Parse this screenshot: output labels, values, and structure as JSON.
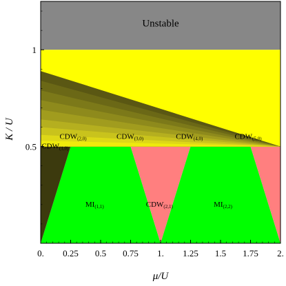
{
  "chart_data": {
    "type": "region-diagram",
    "xlabel": "μ/U",
    "ylabel": "K / U",
    "xlim": [
      0,
      2
    ],
    "ylim": [
      0,
      1.25
    ],
    "x_ticks": [
      {
        "value": 0,
        "label": "0."
      },
      {
        "value": 0.25,
        "label": "0.25"
      },
      {
        "value": 0.5,
        "label": "0.5"
      },
      {
        "value": 0.75,
        "label": "0.75"
      },
      {
        "value": 1,
        "label": "1."
      },
      {
        "value": 1.25,
        "label": "1.25"
      },
      {
        "value": 1.5,
        "label": "1.5"
      },
      {
        "value": 1.75,
        "label": "1.75"
      },
      {
        "value": 2,
        "label": "2."
      }
    ],
    "y_ticks": [
      {
        "value": 0.5,
        "label": "0.5"
      },
      {
        "value": 1,
        "label": "1"
      }
    ],
    "colors": {
      "unstable": "#878787",
      "cdw_yellow": "#ffff00",
      "mi": "#00ff00",
      "cdw21": "#ff7f7f",
      "wedge_dark": "#3c3a0e"
    },
    "regions": [
      {
        "id": "unstable",
        "label": "Unstable",
        "sub": "",
        "color": "#878787",
        "polygon": [
          [
            0,
            1
          ],
          [
            2,
            1
          ],
          [
            2,
            1.25
          ],
          [
            0,
            1.25
          ]
        ],
        "label_pos": [
          1,
          1.13
        ]
      },
      {
        "id": "cdw-yellow",
        "label": "",
        "sub": "",
        "color": "#ffff00",
        "polygon": [
          [
            0,
            0.5
          ],
          [
            2,
            0.5
          ],
          [
            2,
            1
          ],
          [
            0,
            1
          ]
        ]
      },
      {
        "id": "mi-11",
        "label": "MI",
        "sub": "(1,1)",
        "color": "#00ff00",
        "polygon": [
          [
            0,
            0
          ],
          [
            0.25,
            0.5
          ],
          [
            0.75,
            0.5
          ],
          [
            1,
            0
          ]
        ],
        "label_pos": [
          0.45,
          0.2
        ]
      },
      {
        "id": "cdw-21",
        "label": "CDW",
        "sub": "(2,1)",
        "color": "#ff7f7f",
        "polygon": [
          [
            0.75,
            0.5
          ],
          [
            1.25,
            0.5
          ],
          [
            1,
            0
          ]
        ],
        "label_pos": [
          0.99,
          0.2
        ]
      },
      {
        "id": "mi-22",
        "label": "MI",
        "sub": "(2,2)",
        "color": "#00ff00",
        "polygon": [
          [
            1,
            0
          ],
          [
            1.25,
            0.5
          ],
          [
            1.75,
            0.5
          ],
          [
            2,
            0
          ]
        ],
        "label_pos": [
          1.52,
          0.2
        ]
      },
      {
        "id": "cdw-21-right",
        "label": "",
        "sub": "",
        "color": "#ff7f7f",
        "polygon": [
          [
            1.75,
            0.5
          ],
          [
            2,
            0.5
          ],
          [
            2,
            0
          ]
        ]
      },
      {
        "id": "cdw-10-wedge",
        "label": "",
        "sub": "",
        "color": "#3c3a0e",
        "polygon": [
          [
            0,
            0
          ],
          [
            0,
            0.5
          ],
          [
            0.25,
            0.5
          ]
        ]
      }
    ],
    "cdw_bands": [
      {
        "apex": 0.89,
        "label": "CDW",
        "sub": "(1,0)",
        "label_pos": [
          0.12,
          0.5
        ],
        "color": "#5a5713"
      },
      {
        "apex": 0.84,
        "label": "CDW",
        "sub": "(2,0)",
        "label_pos": [
          0.27,
          0.55
        ],
        "color": "#6b6816"
      },
      {
        "apex": 0.79,
        "label": "",
        "sub": "",
        "label_pos": null,
        "color": "#7c7919"
      },
      {
        "apex": 0.74,
        "label": "CDW",
        "sub": "(3,0)",
        "label_pos": [
          0.745,
          0.55
        ],
        "color": "#8e8a1c"
      },
      {
        "apex": 0.69,
        "label": "",
        "sub": "",
        "label_pos": null,
        "color": "#a19c1e"
      },
      {
        "apex": 0.64,
        "label": "CDW",
        "sub": "(4,0)",
        "label_pos": [
          1.24,
          0.55
        ],
        "color": "#b5af1f"
      },
      {
        "apex": 0.6,
        "label": "",
        "sub": "",
        "label_pos": null,
        "color": "#c9c31c"
      },
      {
        "apex": 0.56,
        "label": "CDW",
        "sub": "(5,0)",
        "label_pos": [
          1.73,
          0.55
        ],
        "color": "#ded817"
      },
      {
        "apex": 0.53,
        "label": "",
        "sub": "",
        "label_pos": null,
        "color": "#efea0c"
      }
    ]
  }
}
